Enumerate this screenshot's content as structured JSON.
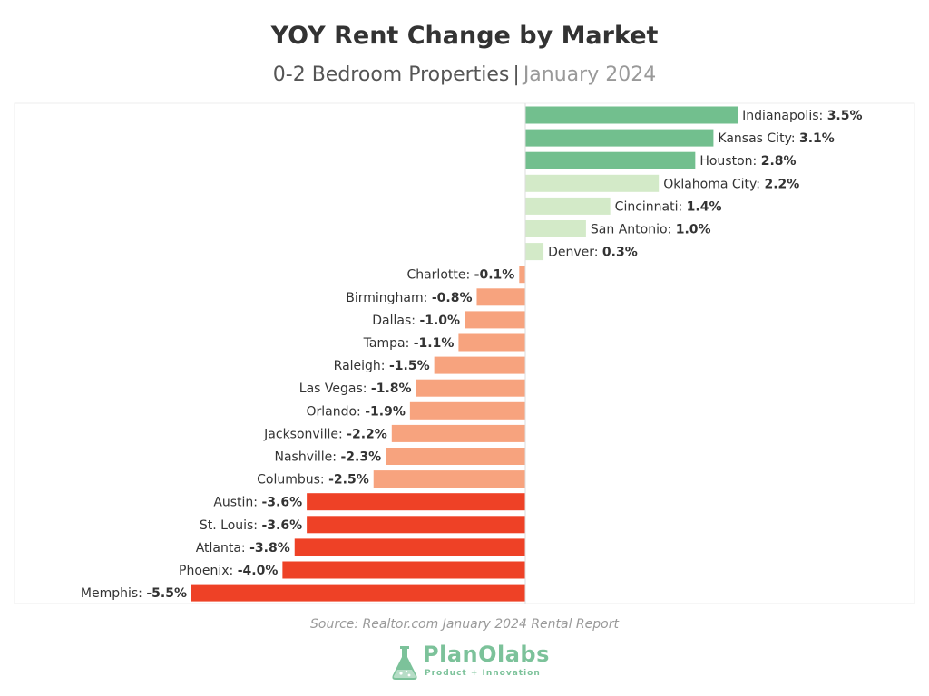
{
  "title": "YOY Rent Change by Market",
  "subtitle": {
    "main": "0-2 Bedroom Properties",
    "separator": "|",
    "date": "January 2024"
  },
  "source": "Source: Realtor.com January 2024 Rental Report",
  "logo": {
    "brand": "PlanOlabs",
    "tagline": "Product + Innovation"
  },
  "colors": {
    "strong_positive": "#72bf8e",
    "light_positive": "#d3eac8",
    "light_negative": "#f7a37e",
    "strong_negative": "#ee4126",
    "axis": "#dddddd"
  },
  "chart_data": {
    "type": "bar",
    "orientation": "horizontal",
    "xlim": [
      -5.5,
      3.5
    ],
    "grid": false,
    "categories": [
      "Indianapolis",
      "Kansas City",
      "Houston",
      "Oklahoma City",
      "Cincinnati",
      "San Antonio",
      "Denver",
      "Charlotte",
      "Birmingham",
      "Dallas",
      "Tampa",
      "Raleigh",
      "Las Vegas",
      "Orlando",
      "Jacksonville",
      "Nashville",
      "Columbus",
      "Austin",
      "St. Louis",
      "Atlanta",
      "Phoenix",
      "Memphis"
    ],
    "values": [
      3.5,
      3.1,
      2.8,
      2.2,
      1.4,
      1.0,
      0.3,
      -0.1,
      -0.8,
      -1.0,
      -1.1,
      -1.5,
      -1.8,
      -1.9,
      -2.2,
      -2.3,
      -2.5,
      -3.6,
      -3.6,
      -3.8,
      -4.0,
      -5.5
    ],
    "value_labels": [
      "3.5%",
      "3.1%",
      "2.8%",
      "2.2%",
      "1.4%",
      "1.0%",
      "0.3%",
      "-0.1%",
      "-0.8%",
      "-1.0%",
      "-1.1%",
      "-1.5%",
      "-1.8%",
      "-1.9%",
      "-2.2%",
      "-2.3%",
      "-2.5%",
      "-3.6%",
      "-3.6%",
      "-3.8%",
      "-4.0%",
      "-5.5%"
    ],
    "color_groups": [
      "strong_positive",
      "strong_positive",
      "strong_positive",
      "light_positive",
      "light_positive",
      "light_positive",
      "light_positive",
      "light_negative",
      "light_negative",
      "light_negative",
      "light_negative",
      "light_negative",
      "light_negative",
      "light_negative",
      "light_negative",
      "light_negative",
      "light_negative",
      "strong_negative",
      "strong_negative",
      "strong_negative",
      "strong_negative",
      "strong_negative"
    ]
  }
}
